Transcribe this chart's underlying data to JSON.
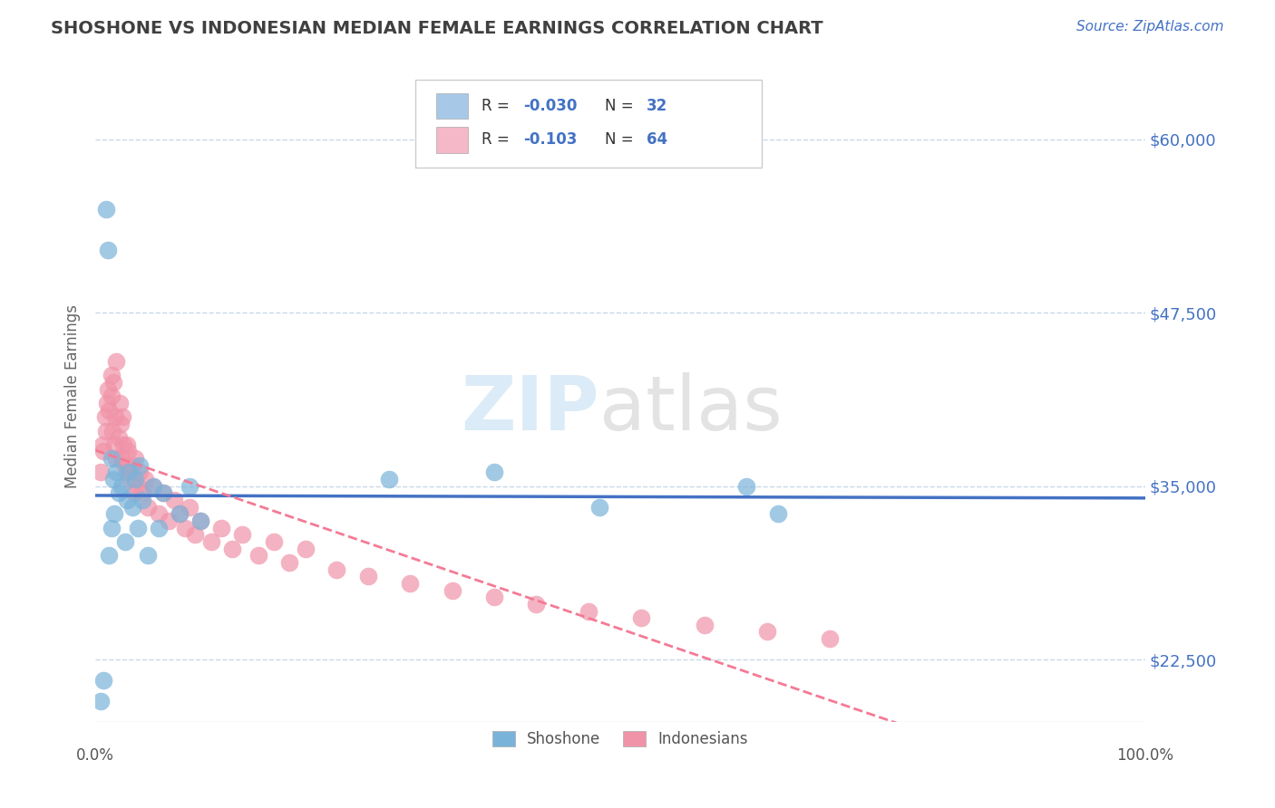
{
  "title": "SHOSHONE VS INDONESIAN MEDIAN FEMALE EARNINGS CORRELATION CHART",
  "source": "Source: ZipAtlas.com",
  "ylabel": "Median Female Earnings",
  "yticks": [
    22500,
    35000,
    47500,
    60000
  ],
  "ytick_labels": [
    "$22,500",
    "$35,000",
    "$47,500",
    "$60,000"
  ],
  "xlim": [
    0,
    1
  ],
  "ylim": [
    18000,
    65000
  ],
  "shoshone_x": [
    0.005,
    0.008,
    0.01,
    0.012,
    0.013,
    0.015,
    0.015,
    0.017,
    0.018,
    0.02,
    0.022,
    0.025,
    0.028,
    0.03,
    0.032,
    0.035,
    0.038,
    0.04,
    0.042,
    0.045,
    0.05,
    0.055,
    0.06,
    0.065,
    0.08,
    0.09,
    0.1,
    0.28,
    0.38,
    0.48,
    0.62,
    0.65
  ],
  "shoshone_y": [
    19500,
    21000,
    55000,
    52000,
    30000,
    32000,
    37000,
    35500,
    33000,
    36000,
    34500,
    35000,
    31000,
    34000,
    36000,
    33500,
    35500,
    32000,
    36500,
    34000,
    30000,
    35000,
    32000,
    34500,
    33000,
    35000,
    32500,
    35500,
    36000,
    33500,
    35000,
    33000
  ],
  "indonesian_x": [
    0.005,
    0.007,
    0.008,
    0.009,
    0.01,
    0.011,
    0.012,
    0.013,
    0.015,
    0.015,
    0.016,
    0.017,
    0.018,
    0.019,
    0.02,
    0.02,
    0.022,
    0.023,
    0.024,
    0.025,
    0.026,
    0.027,
    0.028,
    0.03,
    0.03,
    0.031,
    0.033,
    0.035,
    0.037,
    0.038,
    0.04,
    0.042,
    0.045,
    0.047,
    0.05,
    0.055,
    0.06,
    0.065,
    0.07,
    0.075,
    0.08,
    0.085,
    0.09,
    0.095,
    0.1,
    0.11,
    0.12,
    0.13,
    0.14,
    0.155,
    0.17,
    0.185,
    0.2,
    0.23,
    0.26,
    0.3,
    0.34,
    0.38,
    0.42,
    0.47,
    0.52,
    0.58,
    0.64,
    0.7
  ],
  "indonesian_y": [
    36000,
    38000,
    37500,
    40000,
    39000,
    41000,
    42000,
    40500,
    43000,
    41500,
    39000,
    42500,
    38000,
    40000,
    44000,
    37000,
    38500,
    41000,
    39500,
    37000,
    40000,
    38000,
    36500,
    38000,
    36000,
    37500,
    35500,
    36500,
    34500,
    37000,
    35000,
    36000,
    34500,
    35500,
    33500,
    35000,
    33000,
    34500,
    32500,
    34000,
    33000,
    32000,
    33500,
    31500,
    32500,
    31000,
    32000,
    30500,
    31500,
    30000,
    31000,
    29500,
    30500,
    29000,
    28500,
    28000,
    27500,
    27000,
    26500,
    26000,
    25500,
    25000,
    24500,
    24000
  ],
  "shoshone_color": "#7ab3d9",
  "indonesian_color": "#f093a8",
  "shoshone_line_color": "#4472c4",
  "indonesian_line_color": "#f47a95",
  "background_color": "#ffffff",
  "grid_color": "#c8d8e8",
  "title_color": "#404040",
  "label_color": "#4472c4",
  "source_color": "#4472c4"
}
